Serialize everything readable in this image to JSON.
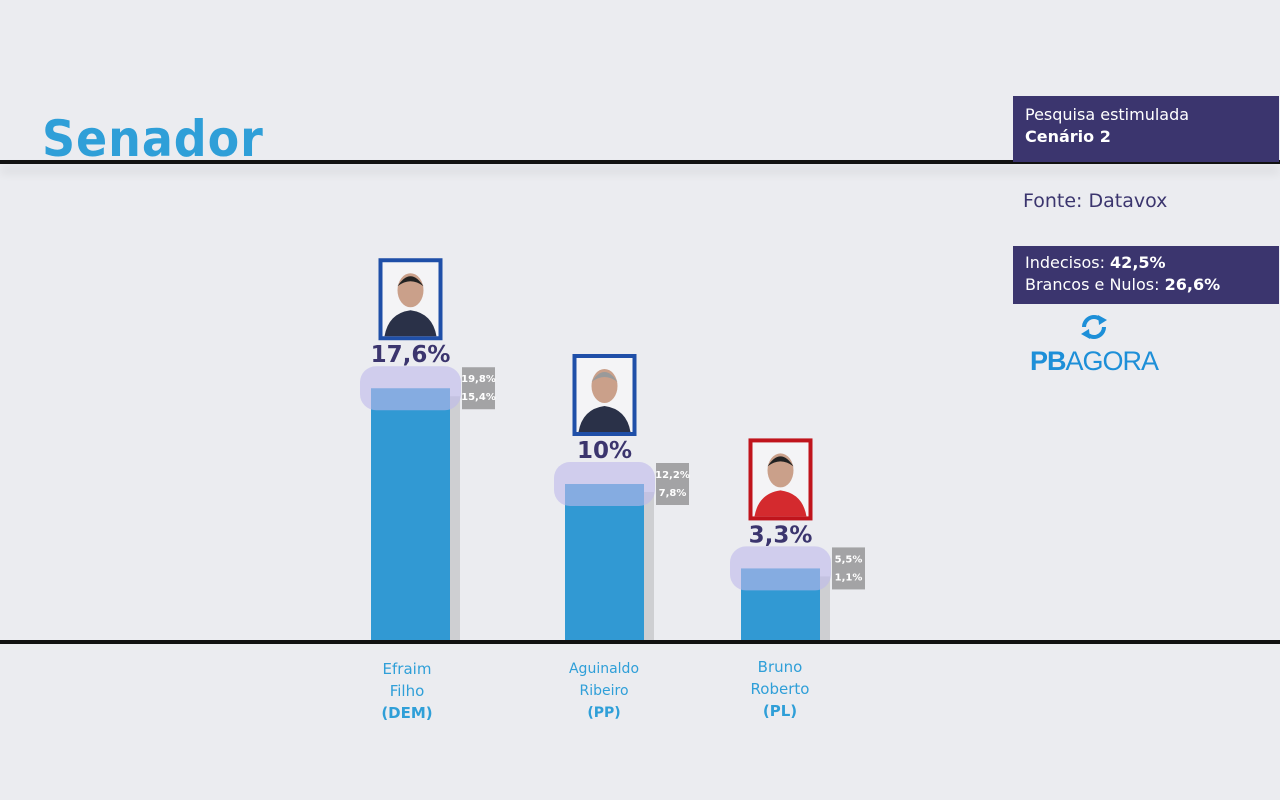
{
  "header": {
    "title": "Senador"
  },
  "info": {
    "survey_type": "Pesquisa estimulada",
    "scenario": "Cenário 2",
    "source": "Fonte: Datavox",
    "undecided_label": "Indecisos: ",
    "undecided_value": "42,5%",
    "blank_null_label": "Brancos e Nulos: ",
    "blank_null_value": "26,6%"
  },
  "logo": {
    "bold": "PB",
    "rest": "AGORA"
  },
  "chart_data": {
    "type": "bar",
    "title": "Senador",
    "categories": [
      "Efraim Filho (DEM)",
      "Aguinaldo Ribeiro (PP)",
      "Bruno Roberto (PL)"
    ],
    "values": [
      17.6,
      10,
      3.3
    ],
    "labels": [
      "17,6%",
      "10%",
      "3,3%"
    ],
    "upper": [
      19.8,
      12.2,
      5.5
    ],
    "lower": [
      15.4,
      7.8,
      1.1
    ],
    "upper_labels": [
      "19,8%",
      "12,2%",
      "5,5%"
    ],
    "lower_labels": [
      "15,4%",
      "7,8%",
      "1,1%"
    ],
    "ylim": [
      0,
      20
    ],
    "bar_color": "#3199d3",
    "photo_frame_colors": [
      "#1f4fa8",
      "#1f4fa8",
      "#c0141c"
    ]
  },
  "candidates": [
    {
      "first": "Efraim",
      "second": "Filho",
      "party": "(DEM)"
    },
    {
      "first": "Aguinaldo",
      "second": "Ribeiro",
      "party": "(PP)"
    },
    {
      "first": "Bruno",
      "second": "Roberto",
      "party": "(PL)"
    }
  ]
}
